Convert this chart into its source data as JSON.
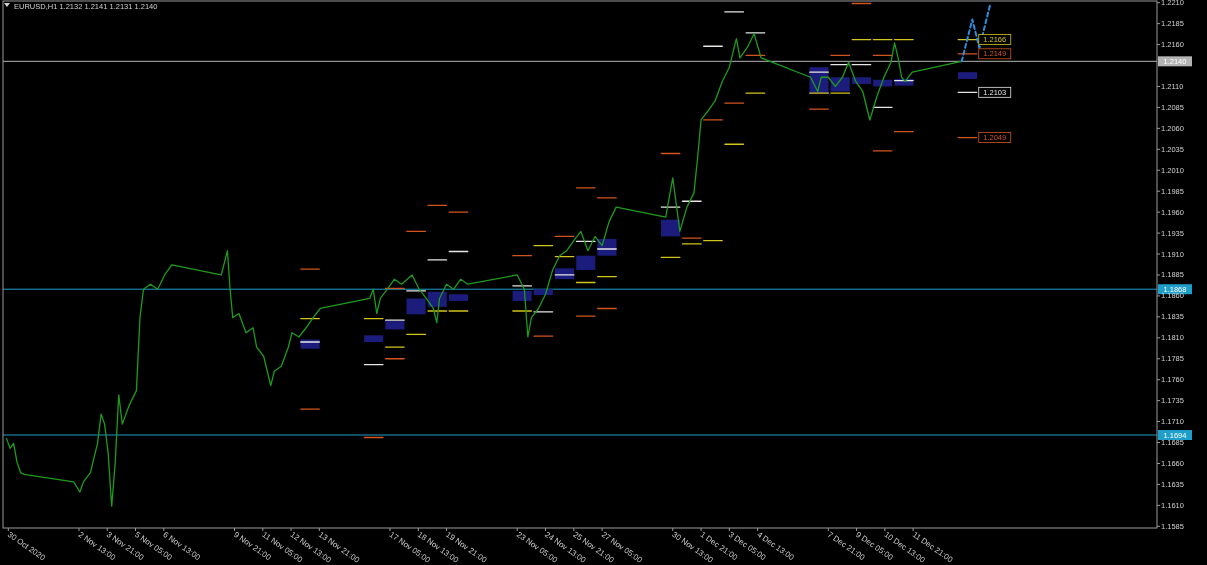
{
  "chart_data": {
    "type": "line",
    "title": "EURUSD,H1 1.2132 1.2141 1.2131 1.2140",
    "xlim": [
      "2020-10-29T23:00",
      "2020-12-23T09:00"
    ],
    "ylim": [
      1.1583,
      1.2212
    ],
    "xticks": [
      {
        "value": "2020-10-30T05:00",
        "label": "30 Oct 2020"
      },
      {
        "value": "2020-11-02T13:00",
        "label": "2 Nov 13:00"
      },
      {
        "value": "2020-11-03T21:00",
        "label": "3 Nov 21:00"
      },
      {
        "value": "2020-11-05T05:00",
        "label": "5 Nov 05:00"
      },
      {
        "value": "2020-11-06T13:00",
        "label": "6 Nov 13:00"
      },
      {
        "value": "2020-11-09T21:00",
        "label": "9 Nov 21:00"
      },
      {
        "value": "2020-11-11T05:00",
        "label": "11 Nov 05:00"
      },
      {
        "value": "2020-11-12T13:00",
        "label": "12 Nov 13:00"
      },
      {
        "value": "2020-11-13T21:00",
        "label": "13 Nov 21:00"
      },
      {
        "value": "2020-11-17T05:00",
        "label": "17 Nov 05:00"
      },
      {
        "value": "2020-11-18T13:00",
        "label": "18 Nov 13:00"
      },
      {
        "value": "2020-11-19T21:00",
        "label": "19 Nov 21:00"
      },
      {
        "value": "2020-11-23T05:00",
        "label": "23 Nov 05:00"
      },
      {
        "value": "2020-11-24T13:00",
        "label": "24 Nov 13:00"
      },
      {
        "value": "2020-11-25T21:00",
        "label": "25 Nov 21:00"
      },
      {
        "value": "2020-11-27T05:00",
        "label": "27 Nov 05:00"
      },
      {
        "value": "2020-11-30T13:00",
        "label": "30 Nov 13:00"
      },
      {
        "value": "2020-12-01T21:00",
        "label": "1 Dec 21:00"
      },
      {
        "value": "2020-12-03T05:00",
        "label": "3 Dec 05:00"
      },
      {
        "value": "2020-12-04T13:00",
        "label": "4 Dec 13:00"
      },
      {
        "value": "2020-12-07T21:00",
        "label": "7 Dec 21:00"
      },
      {
        "value": "2020-12-09T05:00",
        "label": "9 Dec 05:00"
      },
      {
        "value": "2020-12-10T13:00",
        "label": "10 Dec 13:00"
      },
      {
        "value": "2020-12-11T21:00",
        "label": "11 Dec 21:00"
      }
    ],
    "yticks": [
      1.1585,
      {
        "value": 1.161,
        "label": "1.1610"
      },
      1.1635,
      {
        "value": 1.166,
        "label": "1.1660"
      },
      1.1685,
      {
        "value": 1.171,
        "label": "1.1710"
      },
      1.1735,
      {
        "value": 1.176,
        "label": "1.1760"
      },
      1.1785,
      {
        "value": 1.181,
        "label": "1.1810"
      },
      1.1835,
      {
        "value": 1.186,
        "label": "1.1860"
      },
      1.1885,
      {
        "value": 1.191,
        "label": "1.1910"
      },
      1.1935,
      {
        "value": 1.196,
        "label": "1.1960"
      },
      1.1985,
      {
        "value": 1.201,
        "label": "1.2010"
      },
      1.2035,
      {
        "value": 1.206,
        "label": "1.2060"
      },
      1.2085,
      {
        "value": 1.211,
        "label": "1.2110"
      },
      {
        "value": 1.216,
        "label": "1.2160"
      },
      1.2185,
      {
        "value": 1.221,
        "label": "1.2210"
      }
    ],
    "ref_lines": [
      {
        "axis": "y",
        "value": 1.1868,
        "label": "1.1868",
        "color": "#1e9ec8"
      },
      {
        "axis": "y",
        "value": 1.1694,
        "label": "1.1694",
        "color": "#1e9ec8"
      },
      {
        "axis": "y",
        "value": 1.214,
        "label": "1.2140",
        "color": "#b4b4b4"
      }
    ],
    "annotations": [
      {
        "text": "1.2166",
        "x": "2020-12-14T21:00",
        "y": 1.2166
      },
      {
        "text": "1.2149",
        "x": "2020-12-14T21:00",
        "y": 1.2149
      },
      {
        "text": "1.2103",
        "x": "2020-12-14T21:00",
        "y": 1.2103
      },
      {
        "text": "1.2049",
        "x": "2020-12-14T21:00",
        "y": 1.2049
      }
    ],
    "series": [
      {
        "type": "bar",
        "color": "#1c1c7c",
        "x": [
          "2020-11-13T10:30",
          "2020-11-16T10:30",
          "2020-11-17T10:30",
          "2020-11-18T10:30",
          "2020-11-19T10:30",
          "2020-11-20T10:30",
          "2020-11-23T10:30",
          "2020-11-24T10:30",
          "2020-11-25T10:30",
          "2020-11-26T10:30",
          "2020-11-27T10:30",
          "2020-11-30T10:30",
          "2020-12-07T10:30",
          "2020-12-08T10:30",
          "2020-12-09T10:30",
          "2020-12-10T10:30",
          "2020-12-11T10:30",
          "2020-12-14T10:30"
        ],
        "base": [
          1.1797,
          1.1805,
          1.182,
          1.1838,
          1.1847,
          1.1854,
          1.1854,
          1.1861,
          1.188,
          1.1891,
          1.1908,
          1.1931,
          1.2102,
          1.2104,
          1.2113,
          1.211,
          1.2111,
          1.2119
        ],
        "values": [
          0.0011,
          0.0008,
          0.001,
          0.0019,
          0.0018,
          0.0008,
          0.0012,
          0.0007,
          0.0013,
          0.0017,
          0.002,
          0.002,
          0.0031,
          0.0017,
          0.0008,
          0.0008,
          0.0008,
          0.0008
        ]
      },
      {
        "color": "#d2541e",
        "x": [
          "2020-11-13T00:00",
          "2020-11-13T21:00"
        ],
        "values": [
          1.1892,
          1.1892
        ]
      },
      {
        "color": "#d2541e",
        "x": [
          "2020-11-13T00:00",
          "2020-11-13T21:00"
        ],
        "values": [
          1.1725,
          1.1725
        ]
      },
      {
        "color": "#d2541e",
        "x": [
          "2020-11-16T00:00",
          "2020-11-16T21:00"
        ],
        "values": [
          1.1691,
          1.1691
        ]
      },
      {
        "color": "#d2541e",
        "x": [
          "2020-11-17T00:00",
          "2020-11-17T21:00"
        ],
        "values": [
          1.1869,
          1.1869
        ]
      },
      {
        "color": "#d2541e",
        "x": [
          "2020-11-17T00:00",
          "2020-11-17T21:00"
        ],
        "values": [
          1.1785,
          1.1785
        ]
      },
      {
        "color": "#d2541e",
        "x": [
          "2020-11-18T00:00",
          "2020-11-18T21:00"
        ],
        "values": [
          1.1937,
          1.1937
        ]
      },
      {
        "color": "#d2541e",
        "x": [
          "2020-11-19T00:00",
          "2020-11-19T21:00"
        ],
        "values": [
          1.1968,
          1.1968
        ]
      },
      {
        "color": "#d2541e",
        "x": [
          "2020-11-20T00:00",
          "2020-11-20T21:00"
        ],
        "values": [
          1.196,
          1.196
        ]
      },
      {
        "color": "#d2541e",
        "x": [
          "2020-11-23T00:00",
          "2020-11-23T21:00"
        ],
        "values": [
          1.1908,
          1.1908
        ]
      },
      {
        "color": "#d2541e",
        "x": [
          "2020-11-24T00:00",
          "2020-11-24T21:00"
        ],
        "values": [
          1.1812,
          1.1812
        ]
      },
      {
        "color": "#d2541e",
        "x": [
          "2020-11-25T00:00",
          "2020-11-25T21:00"
        ],
        "values": [
          1.1931,
          1.1931
        ]
      },
      {
        "color": "#d2541e",
        "x": [
          "2020-11-26T00:00",
          "2020-11-26T21:00"
        ],
        "values": [
          1.1989,
          1.1989
        ]
      },
      {
        "color": "#d2541e",
        "x": [
          "2020-11-26T00:00",
          "2020-11-26T21:00"
        ],
        "values": [
          1.1836,
          1.1836
        ]
      },
      {
        "color": "#d2541e",
        "x": [
          "2020-11-27T00:00",
          "2020-11-27T21:00"
        ],
        "values": [
          1.1977,
          1.1977
        ]
      },
      {
        "color": "#d2541e",
        "x": [
          "2020-11-27T00:00",
          "2020-11-27T21:00"
        ],
        "values": [
          1.1845,
          1.1845
        ]
      },
      {
        "color": "#d2541e",
        "x": [
          "2020-11-30T00:00",
          "2020-11-30T21:00"
        ],
        "values": [
          1.203,
          1.203
        ]
      },
      {
        "color": "#d2541e",
        "x": [
          "2020-12-01T00:00",
          "2020-12-01T21:00"
        ],
        "values": [
          1.1929,
          1.1929
        ]
      },
      {
        "color": "#d2541e",
        "x": [
          "2020-12-02T00:00",
          "2020-12-02T21:00"
        ],
        "values": [
          1.207,
          1.207
        ]
      },
      {
        "color": "#d2541e",
        "x": [
          "2020-12-03T00:00",
          "2020-12-03T21:00"
        ],
        "values": [
          1.209,
          1.209
        ]
      },
      {
        "color": "#d2541e",
        "x": [
          "2020-12-04T00:00",
          "2020-12-04T21:00"
        ],
        "values": [
          1.2147,
          1.2147
        ]
      },
      {
        "color": "#d2541e",
        "x": [
          "2020-12-07T00:00",
          "2020-12-07T21:00"
        ],
        "values": [
          1.2083,
          1.2083
        ]
      },
      {
        "color": "#d2541e",
        "x": [
          "2020-12-08T00:00",
          "2020-12-08T21:00"
        ],
        "values": [
          1.2147,
          1.2147
        ]
      },
      {
        "color": "#d2541e",
        "x": [
          "2020-12-09T00:00",
          "2020-12-09T21:00"
        ],
        "values": [
          1.2209,
          1.2209
        ]
      },
      {
        "color": "#d2541e",
        "x": [
          "2020-12-10T00:00",
          "2020-12-10T21:00"
        ],
        "values": [
          1.2147,
          1.2147
        ]
      },
      {
        "color": "#d2541e",
        "x": [
          "2020-12-10T00:00",
          "2020-12-10T21:00"
        ],
        "values": [
          1.2033,
          1.2033
        ]
      },
      {
        "color": "#d2541e",
        "x": [
          "2020-12-11T00:00",
          "2020-12-11T21:00"
        ],
        "values": [
          1.2056,
          1.2056
        ]
      },
      {
        "color": "#d2541e",
        "x": [
          "2020-12-14T00:00",
          "2020-12-14T21:00"
        ],
        "values": [
          1.2149,
          1.2149
        ]
      },
      {
        "color": "#d2541e",
        "x": [
          "2020-12-14T00:00",
          "2020-12-14T21:00"
        ],
        "values": [
          1.2049,
          1.2049
        ]
      },
      {
        "color": "#d4c41e",
        "x": [
          "2020-11-13T00:00",
          "2020-11-13T21:00"
        ],
        "values": [
          1.1833,
          1.1833
        ]
      },
      {
        "color": "#d4c41e",
        "x": [
          "2020-11-16T00:00",
          "2020-11-16T21:00"
        ],
        "values": [
          1.1833,
          1.1833
        ]
      },
      {
        "color": "#d4c41e",
        "x": [
          "2020-11-17T00:00",
          "2020-11-17T21:00"
        ],
        "values": [
          1.1799,
          1.1799
        ]
      },
      {
        "color": "#d4c41e",
        "x": [
          "2020-11-18T00:00",
          "2020-11-18T21:00"
        ],
        "values": [
          1.1814,
          1.1814
        ]
      },
      {
        "color": "#d4c41e",
        "x": [
          "2020-11-19T00:00",
          "2020-11-19T21:00"
        ],
        "values": [
          1.1842,
          1.1842
        ]
      },
      {
        "color": "#d4c41e",
        "x": [
          "2020-11-20T00:00",
          "2020-11-20T21:00"
        ],
        "values": [
          1.1842,
          1.1842
        ]
      },
      {
        "color": "#d4c41e",
        "x": [
          "2020-11-23T00:00",
          "2020-11-23T21:00"
        ],
        "values": [
          1.1842,
          1.1842
        ]
      },
      {
        "color": "#d4c41e",
        "x": [
          "2020-11-24T00:00",
          "2020-11-24T21:00"
        ],
        "values": [
          1.192,
          1.192
        ]
      },
      {
        "color": "#d4c41e",
        "x": [
          "2020-11-25T00:00",
          "2020-11-25T21:00"
        ],
        "values": [
          1.1907,
          1.1907
        ]
      },
      {
        "color": "#d4c41e",
        "x": [
          "2020-11-26T00:00",
          "2020-11-26T21:00"
        ],
        "values": [
          1.1876,
          1.1876
        ]
      },
      {
        "color": "#d4c41e",
        "x": [
          "2020-11-27T00:00",
          "2020-11-27T21:00"
        ],
        "values": [
          1.1883,
          1.1883
        ]
      },
      {
        "color": "#d4c41e",
        "x": [
          "2020-11-30T00:00",
          "2020-11-30T21:00"
        ],
        "values": [
          1.1906,
          1.1906
        ]
      },
      {
        "color": "#d4c41e",
        "x": [
          "2020-12-01T00:00",
          "2020-12-01T21:00"
        ],
        "values": [
          1.1922,
          1.1922
        ]
      },
      {
        "color": "#d4c41e",
        "x": [
          "2020-12-02T00:00",
          "2020-12-02T21:00"
        ],
        "values": [
          1.1926,
          1.1926
        ]
      },
      {
        "color": "#d4c41e",
        "x": [
          "2020-12-03T00:00",
          "2020-12-03T21:00"
        ],
        "values": [
          1.2041,
          1.2041
        ]
      },
      {
        "color": "#d4c41e",
        "x": [
          "2020-12-04T00:00",
          "2020-12-04T21:00"
        ],
        "values": [
          1.2102,
          1.2102
        ]
      },
      {
        "color": "#d4c41e",
        "x": [
          "2020-12-07T00:00",
          "2020-12-07T21:00"
        ],
        "values": [
          1.2102,
          1.2102
        ]
      },
      {
        "color": "#d4c41e",
        "x": [
          "2020-12-08T00:00",
          "2020-12-08T21:00"
        ],
        "values": [
          1.2102,
          1.2102
        ]
      },
      {
        "color": "#d4c41e",
        "x": [
          "2020-12-09T00:00",
          "2020-12-09T21:00"
        ],
        "values": [
          1.2166,
          1.2166
        ]
      },
      {
        "color": "#d4c41e",
        "x": [
          "2020-12-10T00:00",
          "2020-12-10T21:00"
        ],
        "values": [
          1.2166,
          1.2166
        ]
      },
      {
        "color": "#d4c41e",
        "x": [
          "2020-12-11T00:00",
          "2020-12-11T21:00"
        ],
        "values": [
          1.2166,
          1.2166
        ]
      },
      {
        "color": "#d4c41e",
        "x": [
          "2020-12-14T00:00",
          "2020-12-14T21:00"
        ],
        "values": [
          1.2166,
          1.2166
        ]
      },
      {
        "color": "#e6e6e6",
        "x": [
          "2020-11-13T00:00",
          "2020-11-13T21:00"
        ],
        "values": [
          1.1805,
          1.1805
        ]
      },
      {
        "color": "#e6e6e6",
        "x": [
          "2020-11-16T00:00",
          "2020-11-16T21:00"
        ],
        "values": [
          1.1778,
          1.1778
        ]
      },
      {
        "color": "#e6e6e6",
        "x": [
          "2020-11-17T00:00",
          "2020-11-17T21:00"
        ],
        "values": [
          1.1831,
          1.1831
        ]
      },
      {
        "color": "#e6e6e6",
        "x": [
          "2020-11-18T00:00",
          "2020-11-18T21:00"
        ],
        "values": [
          1.1866,
          1.1866
        ]
      },
      {
        "color": "#e6e6e6",
        "x": [
          "2020-11-19T00:00",
          "2020-11-19T21:00"
        ],
        "values": [
          1.1903,
          1.1903
        ]
      },
      {
        "color": "#e6e6e6",
        "x": [
          "2020-11-20T00:00",
          "2020-11-20T21:00"
        ],
        "values": [
          1.1913,
          1.1913
        ]
      },
      {
        "color": "#e6e6e6",
        "x": [
          "2020-11-23T00:00",
          "2020-11-23T21:00"
        ],
        "values": [
          1.1872,
          1.1872
        ]
      },
      {
        "color": "#e6e6e6",
        "x": [
          "2020-11-24T00:00",
          "2020-11-24T21:00"
        ],
        "values": [
          1.1841,
          1.1841
        ]
      },
      {
        "color": "#e6e6e6",
        "x": [
          "2020-11-25T00:00",
          "2020-11-25T21:00"
        ],
        "values": [
          1.1885,
          1.1885
        ]
      },
      {
        "color": "#e6e6e6",
        "x": [
          "2020-11-26T00:00",
          "2020-11-26T21:00"
        ],
        "values": [
          1.1925,
          1.1925
        ]
      },
      {
        "color": "#e6e6e6",
        "x": [
          "2020-11-27T00:00",
          "2020-11-27T21:00"
        ],
        "values": [
          1.1916,
          1.1916
        ]
      },
      {
        "color": "#e6e6e6",
        "x": [
          "2020-11-30T00:00",
          "2020-11-30T21:00"
        ],
        "values": [
          1.1966,
          1.1966
        ]
      },
      {
        "color": "#e6e6e6",
        "x": [
          "2020-12-01T00:00",
          "2020-12-01T21:00"
        ],
        "values": [
          1.1973,
          1.1973
        ]
      },
      {
        "color": "#e6e6e6",
        "x": [
          "2020-12-02T00:00",
          "2020-12-02T21:00"
        ],
        "values": [
          1.2158,
          1.2158
        ]
      },
      {
        "color": "#e6e6e6",
        "x": [
          "2020-12-03T00:00",
          "2020-12-03T21:00"
        ],
        "values": [
          1.2199,
          1.2199
        ]
      },
      {
        "color": "#e6e6e6",
        "x": [
          "2020-12-04T00:00",
          "2020-12-04T21:00"
        ],
        "values": [
          1.2174,
          1.2174
        ]
      },
      {
        "color": "#e6e6e6",
        "x": [
          "2020-12-07T00:00",
          "2020-12-07T21:00"
        ],
        "values": [
          1.2127,
          1.2127
        ]
      },
      {
        "color": "#e6e6e6",
        "x": [
          "2020-12-08T00:00",
          "2020-12-08T21:00"
        ],
        "values": [
          1.2136,
          1.2136
        ]
      },
      {
        "color": "#e6e6e6",
        "x": [
          "2020-12-09T00:00",
          "2020-12-09T21:00"
        ],
        "values": [
          1.2136,
          1.2136
        ]
      },
      {
        "color": "#e6e6e6",
        "x": [
          "2020-12-10T00:00",
          "2020-12-10T21:00"
        ],
        "values": [
          1.2085,
          1.2085
        ]
      },
      {
        "color": "#e6e6e6",
        "x": [
          "2020-12-11T00:00",
          "2020-12-11T21:00"
        ],
        "values": [
          1.2117,
          1.2117
        ]
      },
      {
        "color": "#e6e6e6",
        "x": [
          "2020-12-14T00:00",
          "2020-12-14T21:00"
        ],
        "values": [
          1.2103,
          1.2103
        ]
      },
      {
        "color": "#1f9a1f",
        "x": [
          "2020-10-30T03:00",
          "2020-10-30T07:00",
          "2020-10-30T11:00",
          "2020-10-30T15:00",
          "2020-10-30T19:00",
          "2020-10-30T23:00",
          "2020-11-02T07:00",
          "2020-11-02T14:00",
          "2020-11-02T18:00",
          "2020-11-03T02:00",
          "2020-11-03T06:00",
          "2020-11-03T10:00",
          "2020-11-03T14:00",
          "2020-11-03T18:00",
          "2020-11-03T22:00",
          "2020-11-04T02:00",
          "2020-11-04T06:00",
          "2020-11-04T10:00",
          "2020-11-04T14:00",
          "2020-11-04T22:00",
          "2020-11-05T06:00",
          "2020-11-05T10:00",
          "2020-11-05T14:00",
          "2020-11-05T22:00",
          "2020-11-06T06:00",
          "2020-11-06T14:00",
          "2020-11-06T22:00",
          "2020-11-09T06:00",
          "2020-11-09T13:00",
          "2020-11-09T16:00",
          "2020-11-09T19:00",
          "2020-11-10T02:00",
          "2020-11-10T10:00",
          "2020-11-10T18:00",
          "2020-11-10T22:00",
          "2020-11-11T06:00",
          "2020-11-11T14:00",
          "2020-11-11T18:00",
          "2020-11-12T02:00",
          "2020-11-12T10:00",
          "2020-11-12T14:00",
          "2020-11-12T22:00",
          "2020-11-13T06:00",
          "2020-11-13T14:00",
          "2020-11-13T22:00",
          "2020-11-16T06:00",
          "2020-11-16T10:00",
          "2020-11-16T14:00",
          "2020-11-16T18:00",
          "2020-11-17T02:00",
          "2020-11-17T10:00",
          "2020-11-17T18:00",
          "2020-11-18T06:00",
          "2020-11-18T14:00",
          "2020-11-18T22:00",
          "2020-11-19T06:00",
          "2020-11-19T10:00",
          "2020-11-19T13:00",
          "2020-11-19T21:00",
          "2020-11-20T05:00",
          "2020-11-20T13:00",
          "2020-11-20T21:00",
          "2020-11-23T05:00",
          "2020-11-23T13:00",
          "2020-11-23T17:00",
          "2020-11-23T21:00",
          "2020-11-24T05:00",
          "2020-11-24T13:00",
          "2020-11-24T21:00",
          "2020-11-25T05:00",
          "2020-11-25T13:00",
          "2020-11-25T21:00",
          "2020-11-26T05:00",
          "2020-11-26T13:00",
          "2020-11-26T21:00",
          "2020-11-27T05:00",
          "2020-11-27T13:00",
          "2020-11-27T21:00",
          "2020-11-30T05:00",
          "2020-11-30T13:00",
          "2020-11-30T21:00",
          "2020-12-01T05:00",
          "2020-12-01T13:00",
          "2020-12-01T17:00",
          "2020-12-01T21:00",
          "2020-12-02T05:00",
          "2020-12-02T13:00",
          "2020-12-02T21:00",
          "2020-12-03T05:00",
          "2020-12-03T13:00",
          "2020-12-03T17:00",
          "2020-12-04T01:00",
          "2020-12-04T09:00",
          "2020-12-04T17:00",
          "2020-12-07T01:00",
          "2020-12-07T09:00",
          "2020-12-07T13:00",
          "2020-12-07T21:00",
          "2020-12-08T05:00",
          "2020-12-08T13:00",
          "2020-12-08T20:00",
          "2020-12-09T04:00",
          "2020-12-09T12:00",
          "2020-12-09T20:00",
          "2020-12-10T04:00",
          "2020-12-10T12:00",
          "2020-12-10T20:00",
          "2020-12-11T00:00",
          "2020-12-11T04:00",
          "2020-12-11T08:00",
          "2020-12-11T12:00",
          "2020-12-11T20:00",
          "2020-12-14T00:00",
          "2020-12-14T04:00"
        ],
        "values": [
          1.169,
          1.1678,
          1.1684,
          1.1661,
          1.1649,
          1.1647,
          1.1638,
          1.1626,
          1.1638,
          1.1649,
          1.1667,
          1.1684,
          1.1719,
          1.1707,
          1.1672,
          1.1609,
          1.1661,
          1.1742,
          1.1707,
          1.173,
          1.1747,
          1.1834,
          1.1868,
          1.1874,
          1.1868,
          1.1885,
          1.1897,
          1.1885,
          1.1914,
          1.1868,
          1.1834,
          1.1839,
          1.1816,
          1.1822,
          1.1799,
          1.1788,
          1.1753,
          1.177,
          1.1776,
          1.1799,
          1.1816,
          1.1811,
          1.1822,
          1.1834,
          1.1845,
          1.1857,
          1.1868,
          1.1839,
          1.1857,
          1.1868,
          1.188,
          1.1874,
          1.1885,
          1.1868,
          1.1857,
          1.1845,
          1.1828,
          1.1857,
          1.1874,
          1.1868,
          1.188,
          1.1874,
          1.1885,
          1.1868,
          1.1811,
          1.1834,
          1.1845,
          1.1862,
          1.1891,
          1.1908,
          1.1914,
          1.1926,
          1.1937,
          1.1914,
          1.1931,
          1.192,
          1.1949,
          1.1966,
          1.1954,
          1.2001,
          1.1937,
          1.1966,
          1.1983,
          1.2024,
          1.207,
          1.2081,
          1.2093,
          1.2116,
          1.2133,
          1.2167,
          1.2144,
          1.2156,
          1.2173,
          1.2144,
          1.2121,
          1.2104,
          1.2121,
          1.2121,
          1.211,
          1.2121,
          1.2139,
          1.2116,
          1.2104,
          1.207,
          1.2098,
          1.2121,
          1.2139,
          1.2162,
          1.2144,
          1.2121,
          1.2116,
          1.2127,
          1.2139,
          1.214
        ]
      },
      {
        "color": "#2b8fe0",
        "line_style": "dashed",
        "x": [
          "2020-12-14T04:00",
          "2020-12-14T16:00",
          "2020-12-15T00:00",
          "2020-12-15T12:00"
        ],
        "values": [
          1.214,
          1.219,
          1.2156,
          1.2207
        ]
      }
    ]
  }
}
